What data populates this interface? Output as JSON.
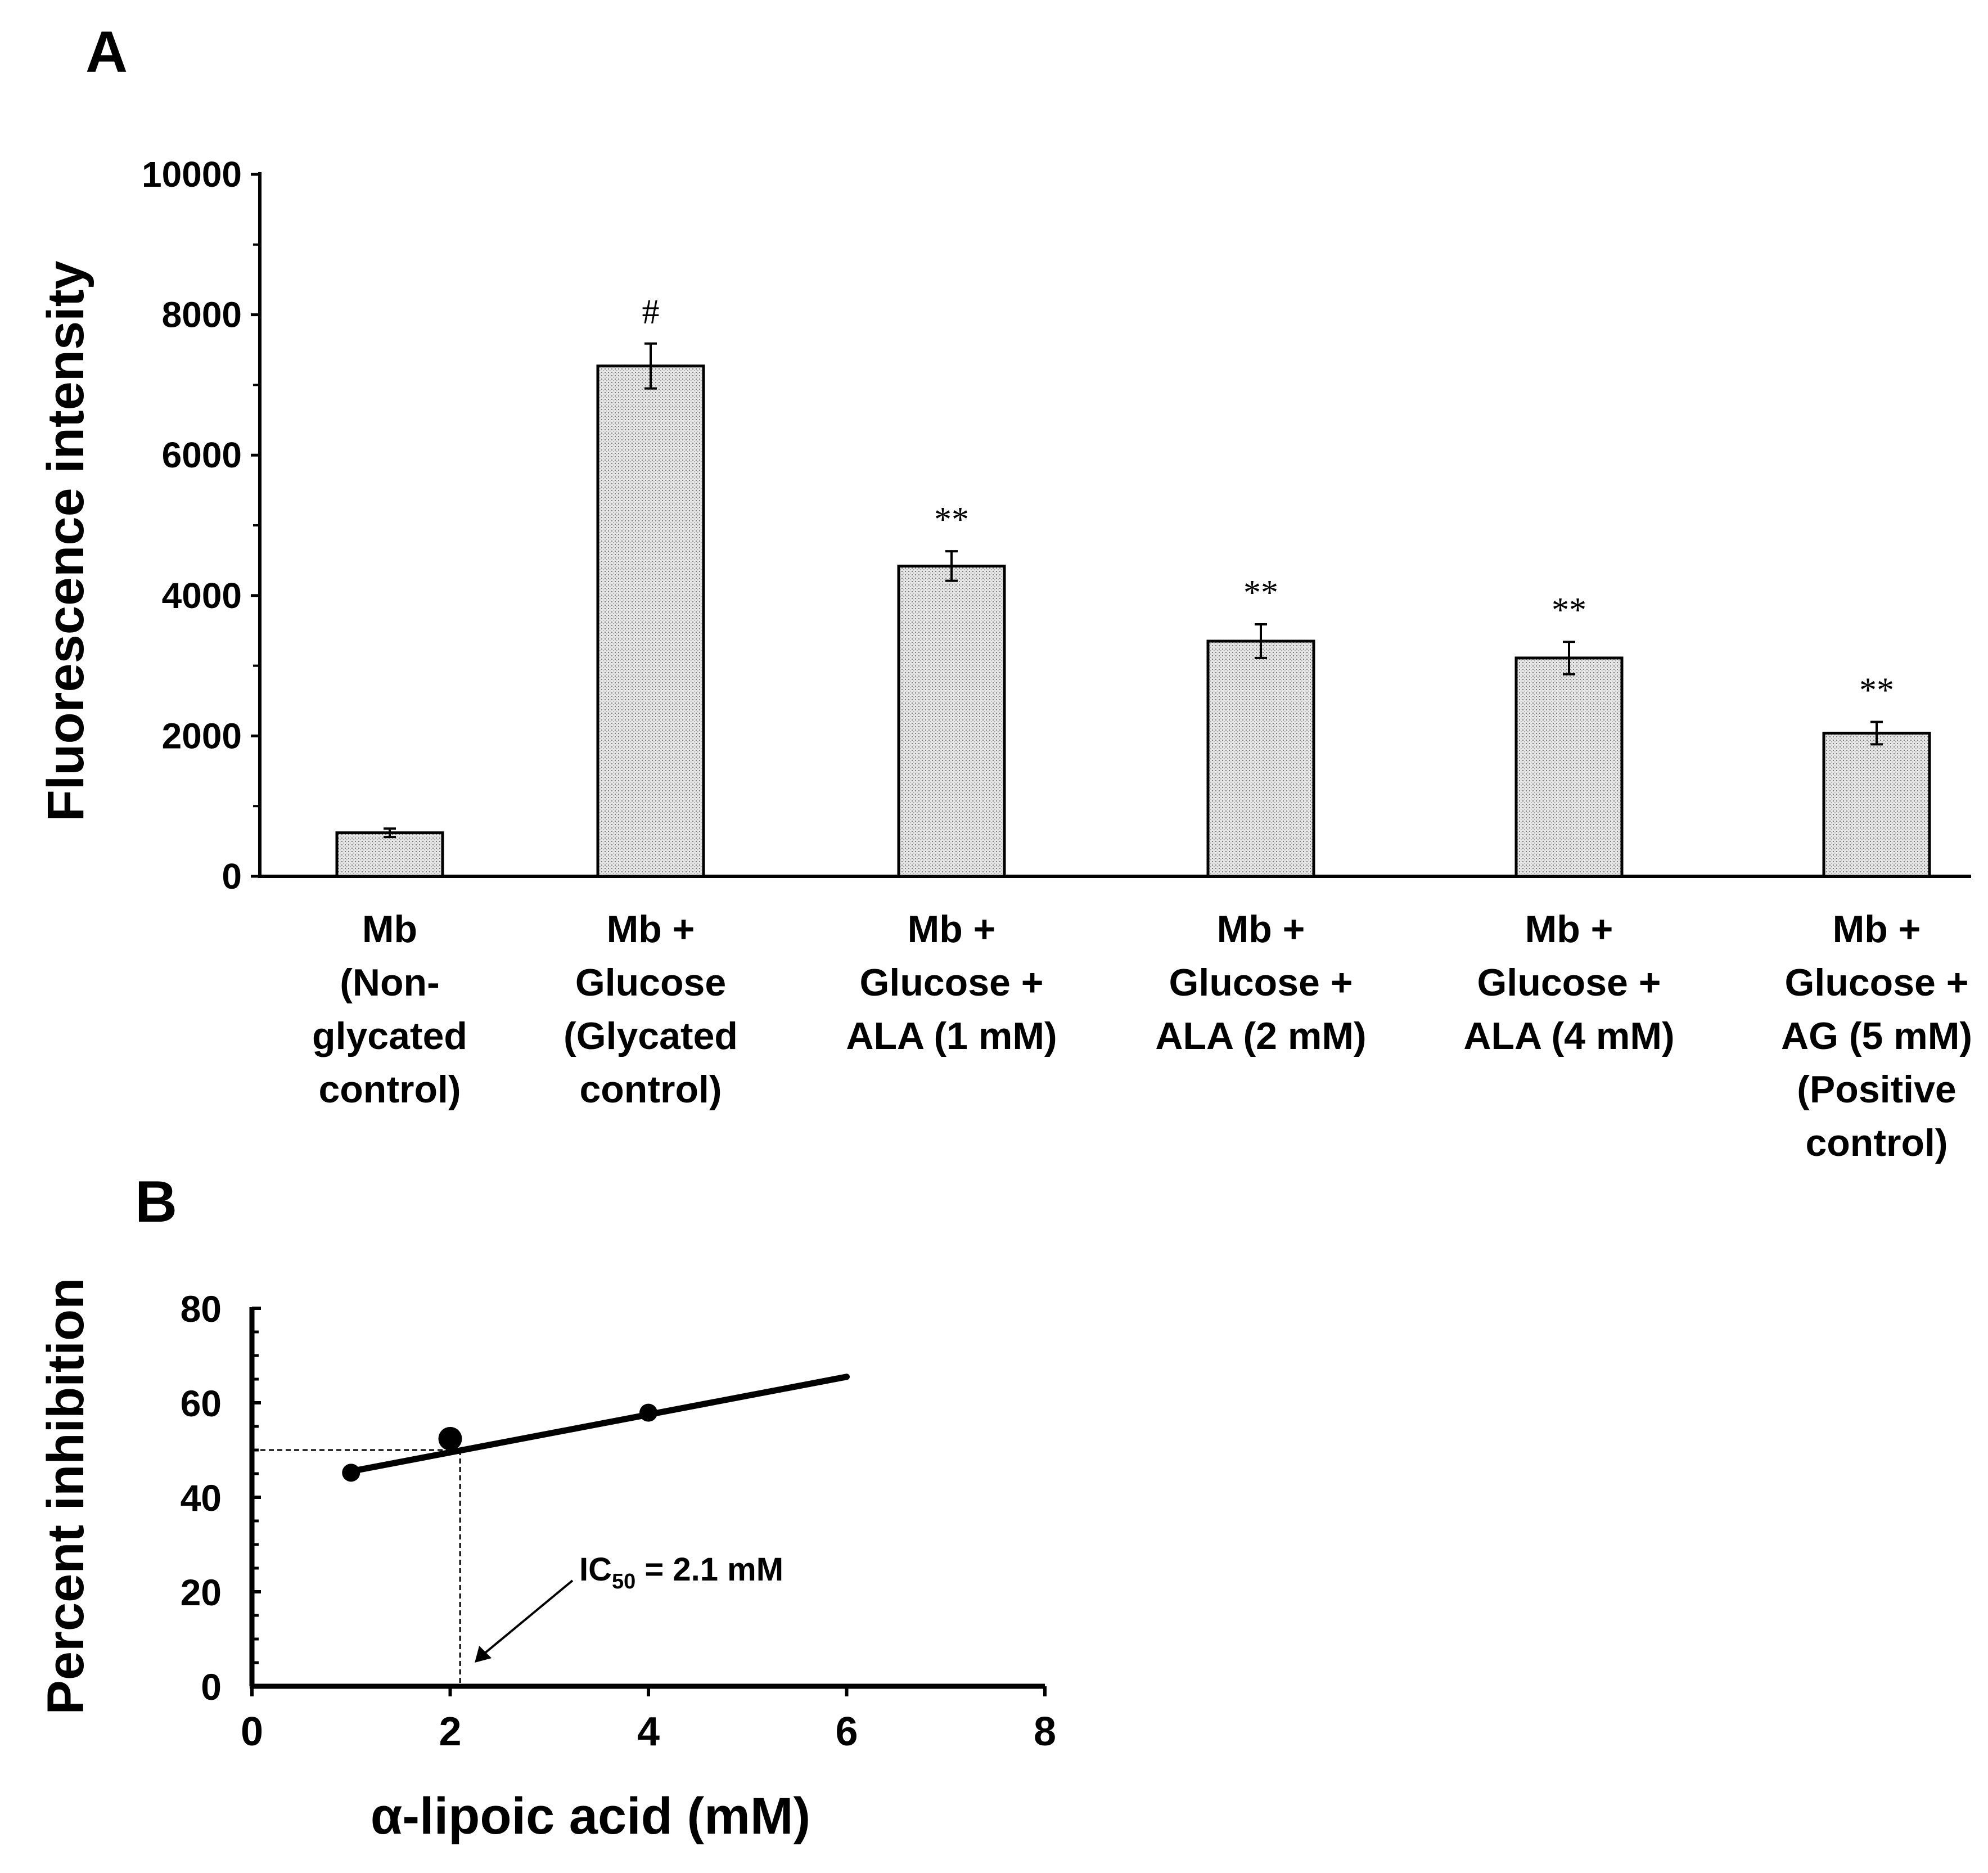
{
  "chart_data": [
    {
      "panel": "A",
      "type": "bar",
      "ylabel": "Fluorescence intensity",
      "xlabel": "",
      "ylim": [
        0,
        10000
      ],
      "yticks": [
        "0",
        "2000",
        "4000",
        "6000",
        "8000",
        "10000"
      ],
      "categories": [
        [
          "Mb",
          "(Non-",
          "glycated",
          "control)"
        ],
        [
          "Mb +",
          "Glucose",
          "(Glycated",
          "control)"
        ],
        [
          "Mb +",
          "Glucose +",
          "ALA (1 mM)"
        ],
        [
          "Mb +",
          "Glucose +",
          "ALA (2 mM)"
        ],
        [
          "Mb +",
          "Glucose +",
          "ALA (4 mM)"
        ],
        [
          "Mb +",
          "Glucose +",
          "AG (5 mM)",
          "(Positive",
          "control)"
        ]
      ],
      "values": [
        620,
        7270,
        4420,
        3350,
        3110,
        2040
      ],
      "errors": [
        60,
        320,
        210,
        240,
        230,
        160
      ],
      "significance": [
        "",
        "#",
        "**",
        "**",
        "**",
        "**"
      ]
    },
    {
      "panel": "B",
      "type": "line",
      "xlabel": "α-lipoic acid (mM)",
      "ylabel": "Percent inhibition",
      "xlim": [
        0,
        8
      ],
      "ylim": [
        0,
        80
      ],
      "xticks": [
        "0",
        "2",
        "4",
        "6",
        "8"
      ],
      "yticks": [
        "0",
        "20",
        "40",
        "60",
        "80"
      ],
      "points": [
        {
          "x": 1,
          "y": 45.2
        },
        {
          "x": 2,
          "y": 52.4
        },
        {
          "x": 4,
          "y": 57.9
        }
      ],
      "fit_line": {
        "x": [
          1,
          6
        ],
        "y": [
          45.5,
          65.5
        ]
      },
      "reference_y": 50,
      "ic50": 2.1,
      "annotation": {
        "prefix": "IC",
        "subscript": "50",
        "suffix": " = 2.1 mM"
      }
    }
  ]
}
